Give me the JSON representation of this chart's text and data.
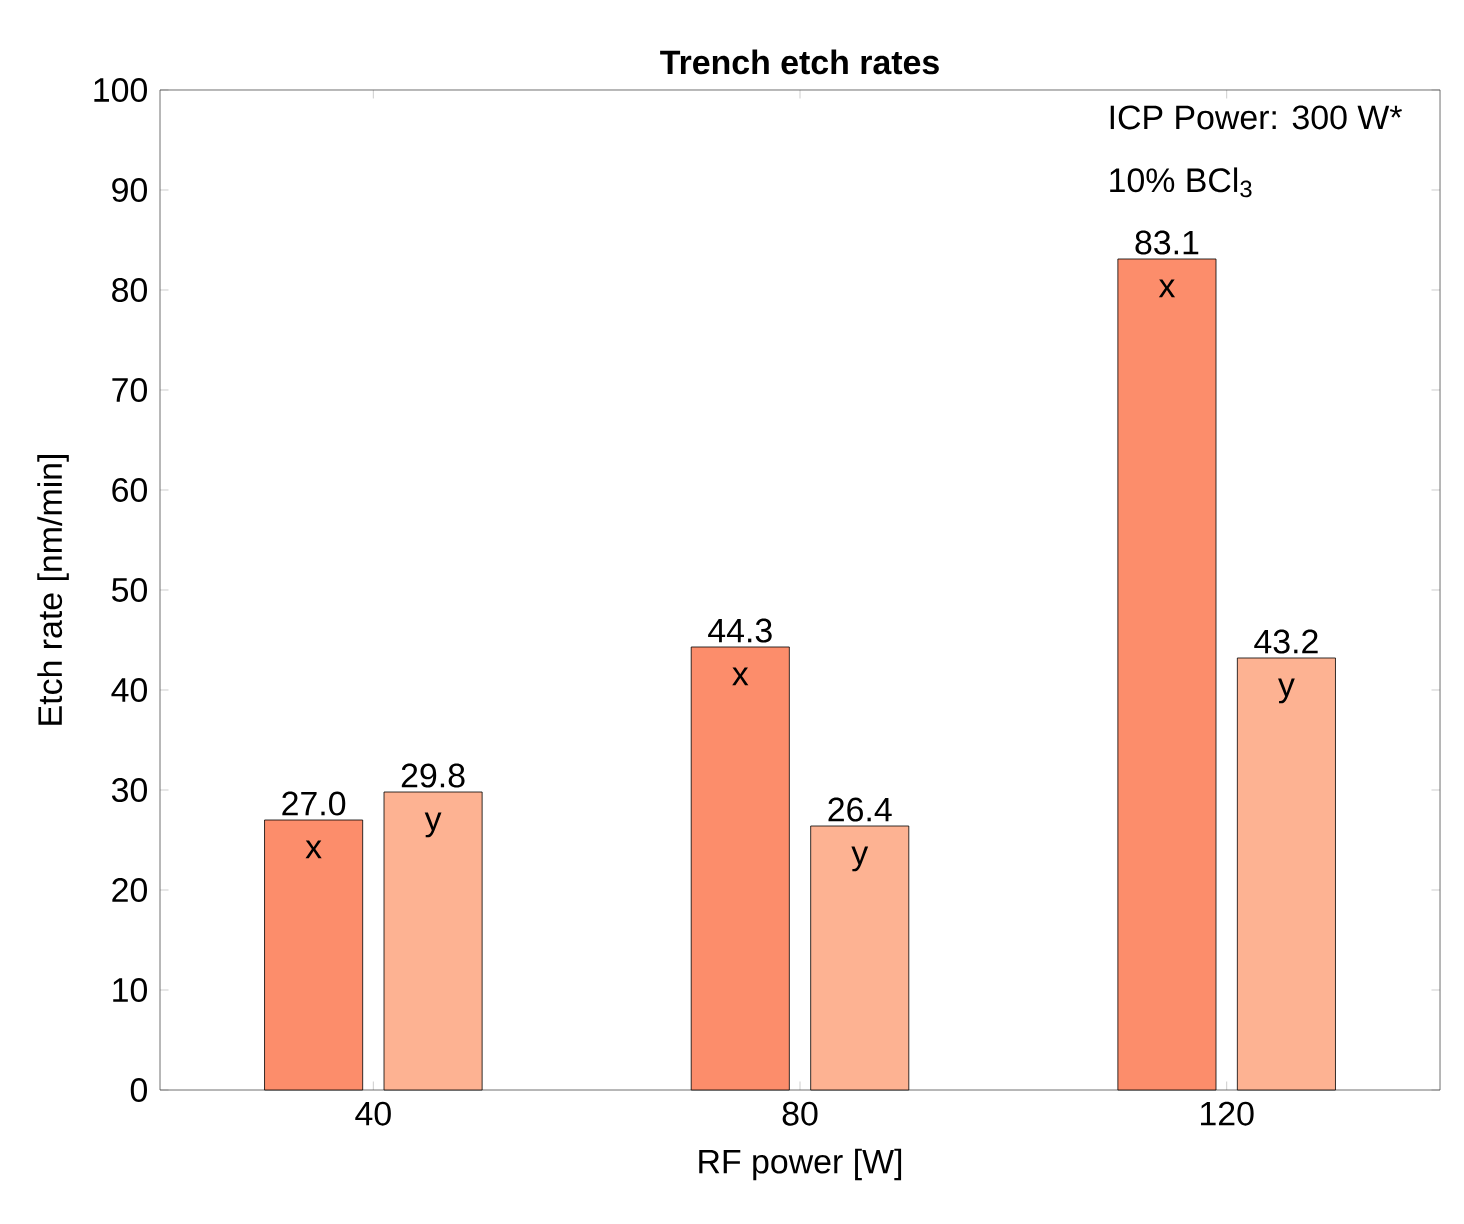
{
  "chart_data": {
    "type": "bar",
    "title": "Trench etch rates",
    "xlabel": "RF power [W]",
    "ylabel": "Etch rate [nm/min]",
    "categories": [
      "40",
      "80",
      "120"
    ],
    "series": [
      {
        "name": "x",
        "color": "#fc8d6b",
        "values": [
          27.0,
          44.3,
          83.1
        ],
        "value_labels": [
          "27.0",
          "44.3",
          "83.1"
        ]
      },
      {
        "name": "y",
        "color": "#fdb292",
        "values": [
          29.8,
          26.4,
          43.2
        ],
        "value_labels": [
          "29.8",
          "26.4",
          "43.2"
        ]
      }
    ],
    "ylim": [
      0,
      100
    ],
    "yticks": [
      0,
      10,
      20,
      30,
      40,
      50,
      60,
      70,
      80,
      90,
      100
    ],
    "grid": false,
    "annotations": [
      "ICP Power: 300 W*",
      "10% BCl$_{3}$"
    ]
  }
}
